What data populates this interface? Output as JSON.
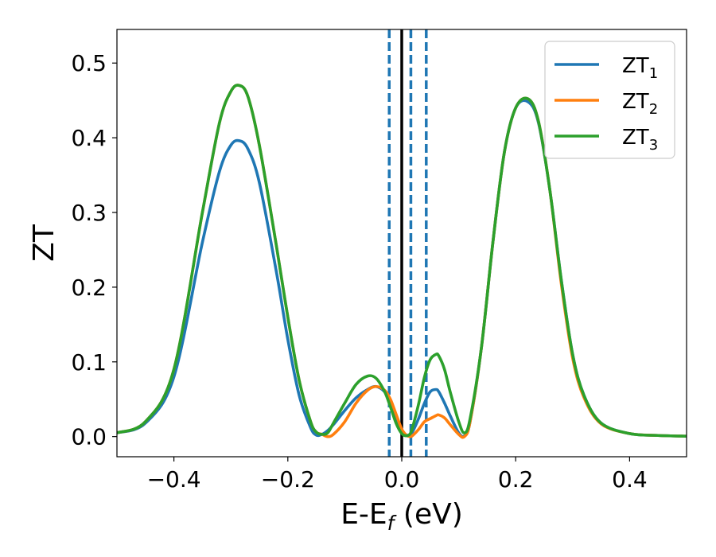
{
  "chart_data": {
    "type": "line",
    "title": "",
    "xlabel": "E-E",
    "xlabel_sub": "f",
    "xlabel_unit": " (eV)",
    "ylabel": "ZT",
    "xlim": [
      -0.5,
      0.5
    ],
    "ylim": [
      -0.027,
      0.545
    ],
    "xticks": [
      -0.4,
      -0.2,
      0.0,
      0.2,
      0.4
    ],
    "xtick_labels": [
      "−0.4",
      "−0.2",
      "0.0",
      "0.2",
      "0.4"
    ],
    "yticks": [
      0.0,
      0.1,
      0.2,
      0.3,
      0.4,
      0.5
    ],
    "ytick_labels": [
      "0.0",
      "0.1",
      "0.2",
      "0.3",
      "0.4",
      "0.5"
    ],
    "grid": false,
    "legend_position": "top-right",
    "vlines": [
      {
        "x": 0.0,
        "style": "solid",
        "color": "#000000"
      },
      {
        "x": -0.022,
        "style": "dashed",
        "color": "#1f77b4"
      },
      {
        "x": 0.016,
        "style": "dashed",
        "color": "#1f77b4"
      },
      {
        "x": 0.043,
        "style": "dashed",
        "color": "#1f77b4"
      }
    ],
    "x": [
      -0.5,
      -0.45,
      -0.4,
      -0.35,
      -0.32,
      -0.3,
      -0.285,
      -0.27,
      -0.25,
      -0.22,
      -0.2,
      -0.18,
      -0.16,
      -0.15,
      -0.14,
      -0.13,
      -0.12,
      -0.1,
      -0.08,
      -0.06,
      -0.045,
      -0.03,
      -0.02,
      -0.01,
      0.0,
      0.008,
      0.015,
      0.02,
      0.03,
      0.04,
      0.05,
      0.06,
      0.065,
      0.075,
      0.085,
      0.1,
      0.11,
      0.12,
      0.14,
      0.16,
      0.18,
      0.2,
      0.222,
      0.24,
      0.26,
      0.28,
      0.3,
      0.32,
      0.35,
      0.4,
      0.45,
      0.5
    ],
    "series": [
      {
        "name": "ZT",
        "name_sub": "1",
        "color": "#1f77b4",
        "values": [
          0.005,
          0.018,
          0.08,
          0.26,
          0.355,
          0.39,
          0.396,
          0.385,
          0.34,
          0.22,
          0.13,
          0.055,
          0.012,
          0.002,
          0.003,
          0.008,
          0.016,
          0.035,
          0.052,
          0.063,
          0.067,
          0.06,
          0.048,
          0.028,
          0.008,
          0.002,
          0.003,
          0.008,
          0.025,
          0.045,
          0.06,
          0.063,
          0.06,
          0.045,
          0.028,
          0.005,
          0.001,
          0.02,
          0.12,
          0.26,
          0.38,
          0.44,
          0.448,
          0.42,
          0.33,
          0.21,
          0.11,
          0.055,
          0.018,
          0.004,
          0.0015,
          0.0005
        ]
      },
      {
        "name": "ZT",
        "name_sub": "2",
        "color": "#ff7f0e",
        "values": [
          0.005,
          0.02,
          0.09,
          0.3,
          0.42,
          0.462,
          0.47,
          0.455,
          0.39,
          0.255,
          0.16,
          0.075,
          0.02,
          0.006,
          0.003,
          0.0,
          0.003,
          0.02,
          0.045,
          0.062,
          0.067,
          0.062,
          0.05,
          0.03,
          0.01,
          0.002,
          0.0,
          0.002,
          0.01,
          0.02,
          0.024,
          0.028,
          0.029,
          0.025,
          0.016,
          0.003,
          0.0,
          0.02,
          0.12,
          0.26,
          0.38,
          0.44,
          0.452,
          0.422,
          0.33,
          0.205,
          0.105,
          0.052,
          0.017,
          0.004,
          0.0015,
          0.0005
        ]
      },
      {
        "name": "ZT",
        "name_sub": "3",
        "color": "#2ca02c",
        "values": [
          0.005,
          0.02,
          0.09,
          0.3,
          0.42,
          0.462,
          0.47,
          0.455,
          0.39,
          0.255,
          0.16,
          0.075,
          0.02,
          0.006,
          0.003,
          0.005,
          0.018,
          0.045,
          0.07,
          0.081,
          0.078,
          0.06,
          0.04,
          0.018,
          0.004,
          0.001,
          0.004,
          0.015,
          0.045,
          0.08,
          0.103,
          0.11,
          0.108,
          0.09,
          0.06,
          0.02,
          0.005,
          0.024,
          0.12,
          0.26,
          0.38,
          0.44,
          0.452,
          0.422,
          0.33,
          0.21,
          0.11,
          0.055,
          0.018,
          0.004,
          0.0015,
          0.0005
        ]
      }
    ]
  }
}
